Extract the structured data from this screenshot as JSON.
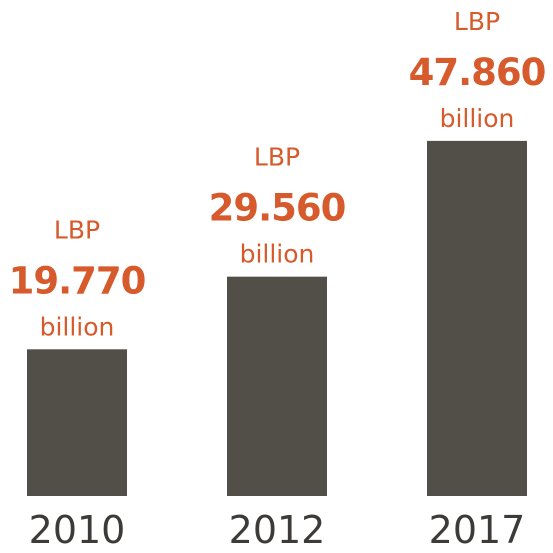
{
  "chart_data": {
    "type": "bar",
    "title": "",
    "xlabel": "",
    "ylabel": "",
    "categories": [
      "2010",
      "2012",
      "2017"
    ],
    "values": [
      19.77,
      29.56,
      47.86
    ],
    "ylim": [
      0,
      55
    ],
    "grid": false,
    "legend": "none",
    "data_labels": [
      {
        "prefix": "LBP",
        "value": "19.770",
        "suffix": "billion"
      },
      {
        "prefix": "LBP",
        "value": "29.560",
        "suffix": "billion"
      },
      {
        "prefix": "LBP",
        "value": "47.860",
        "suffix": "billion"
      }
    ],
    "colors": {
      "bar": "#524e48",
      "label": "#d65a2b",
      "axis_text": "#3d3b37"
    }
  }
}
